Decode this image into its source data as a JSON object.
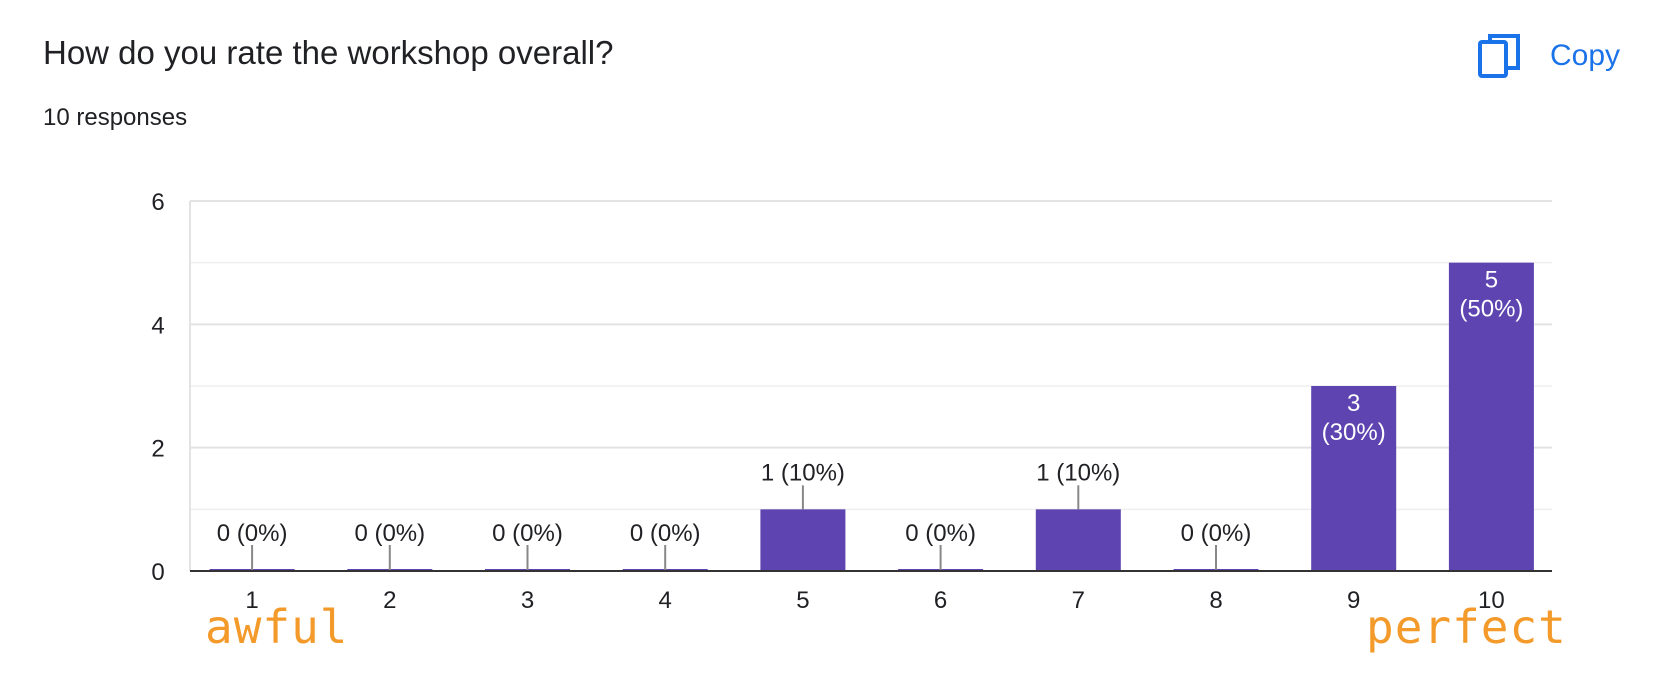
{
  "header": {
    "title": "How do you rate the workshop overall?",
    "responses": "10 responses",
    "copy_label": "Copy",
    "copy_icon": "copy-icon"
  },
  "annotations": {
    "low": "awful",
    "high": "perfect",
    "color": "#f39a2b"
  },
  "colors": {
    "bar": "#5e44b0",
    "grid": "#e6e6e6",
    "axis": "#333333",
    "accent": "#1a73e8"
  },
  "chart_data": {
    "type": "bar",
    "categories": [
      "1",
      "2",
      "3",
      "4",
      "5",
      "6",
      "7",
      "8",
      "9",
      "10"
    ],
    "values": [
      0,
      0,
      0,
      0,
      1,
      0,
      1,
      0,
      3,
      5
    ],
    "percents": [
      "0%",
      "0%",
      "0%",
      "0%",
      "10%",
      "0%",
      "10%",
      "0%",
      "30%",
      "50%"
    ],
    "title": "",
    "xlabel": "",
    "ylabel": "",
    "ylim": [
      0,
      6
    ],
    "yticks": [
      0,
      2,
      4,
      6
    ],
    "grid": true,
    "legend": "none"
  }
}
